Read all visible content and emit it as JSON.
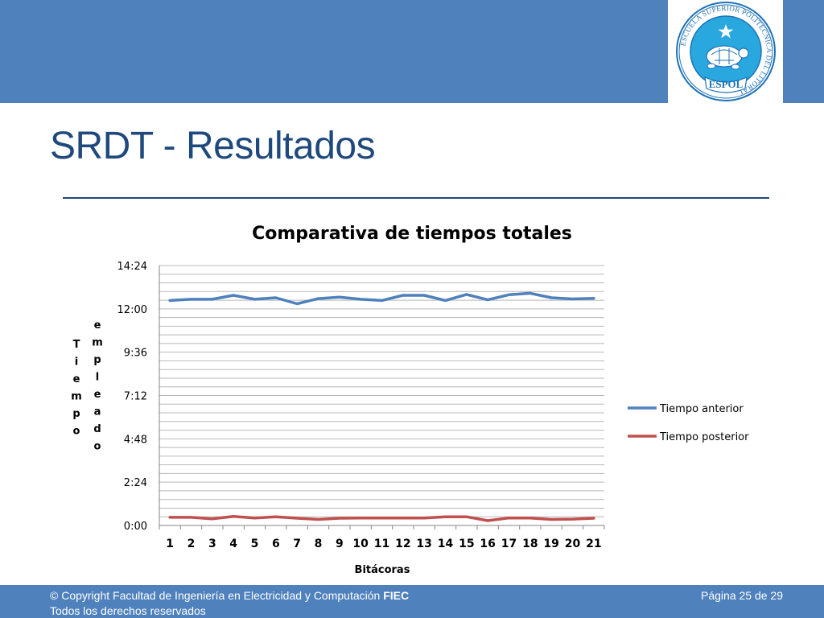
{
  "slide": {
    "title": "SRDT - Resultados",
    "logo": {
      "ring_text": "ESCUELA SUPERIOR POLITECNICA DEL LITORAL",
      "banner": "ESPOL",
      "icon": "turtle-star-icon"
    }
  },
  "footer": {
    "copyright": "© Copyright  Facultad de Ingeniería en Electricidad y Computación ",
    "brand": "FIEC",
    "rights": "Todos los derechos reservados",
    "page": "Página 25 de 29"
  },
  "colors": {
    "accent": "#4f81bd",
    "title": "#1f497d",
    "series_anterior": "#4f81bd",
    "series_posterior": "#c0504d"
  },
  "chart_data": {
    "type": "line",
    "title": "Comparativa de tiempos totales",
    "xlabel": "Bitácoras",
    "ylabel_part1": "Tiempo",
    "ylabel_part2": "empleado",
    "categories": [
      "1",
      "2",
      "3",
      "4",
      "5",
      "6",
      "7",
      "8",
      "9",
      "10",
      "11",
      "12",
      "13",
      "14",
      "15",
      "16",
      "17",
      "18",
      "19",
      "20",
      "21"
    ],
    "y_unit": "minutes",
    "y_ticks": [
      {
        "value": 0,
        "label": "0:00"
      },
      {
        "value": 144,
        "label": "2:24"
      },
      {
        "value": 288,
        "label": "4:48"
      },
      {
        "value": 432,
        "label": "7:12"
      },
      {
        "value": 576,
        "label": "9:36"
      },
      {
        "value": 720,
        "label": "12:00"
      },
      {
        "value": 864,
        "label": "14:24"
      }
    ],
    "ylim": [
      0,
      864
    ],
    "grid_step": 28.8,
    "grid": true,
    "legend_position": "right",
    "series": [
      {
        "name": "Tiempo anterior",
        "color": "#4f81bd",
        "values": [
          748,
          752,
          752,
          765,
          752,
          757,
          737,
          754,
          759,
          752,
          748,
          765,
          765,
          748,
          768,
          750,
          767,
          772,
          757,
          753,
          755
        ]
      },
      {
        "name": "Tiempo posterior",
        "color": "#c0504d",
        "values": [
          27,
          27,
          22,
          30,
          25,
          29,
          24,
          20,
          24,
          25,
          25,
          25,
          25,
          29,
          29,
          16,
          25,
          25,
          20,
          21,
          24
        ]
      }
    ]
  }
}
